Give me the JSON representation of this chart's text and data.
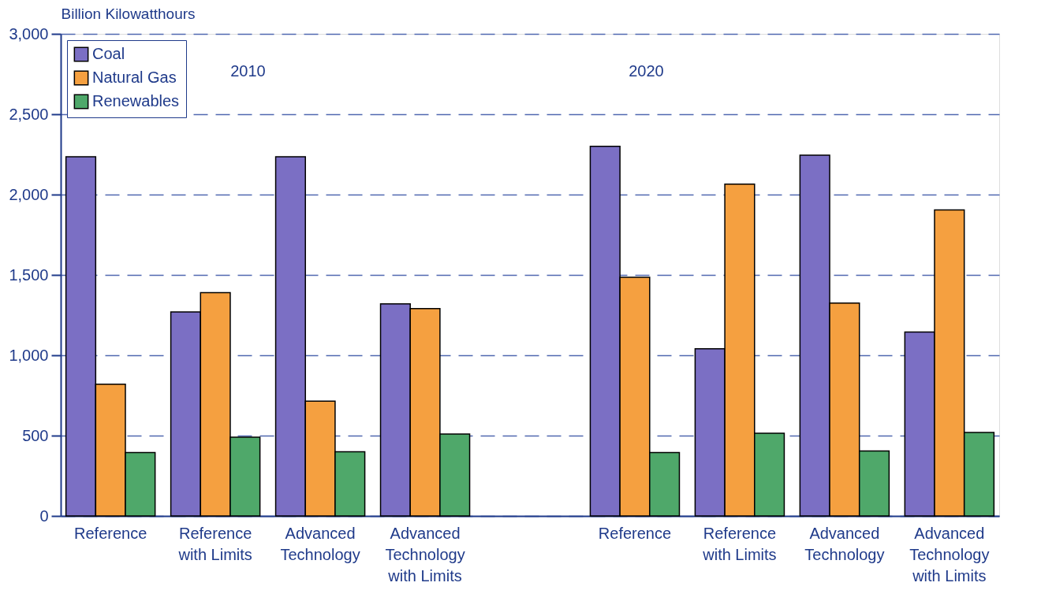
{
  "chart_data": {
    "type": "bar",
    "ylabel": "Billion Kilowatthours",
    "categories": [
      "Reference",
      "Reference\nwith Limits",
      "Advanced\nTechnology",
      "Advanced\nTechnology\nwith Limits",
      null,
      "Reference",
      "Reference\nwith Limits",
      "Advanced\nTechnology",
      "Advanced\nTechnology\nwith Limits"
    ],
    "series": [
      {
        "name": "Coal",
        "color": "#7b6fc4",
        "values": [
          2235,
          1270,
          2235,
          1320,
          null,
          2300,
          1040,
          2245,
          1145
        ]
      },
      {
        "name": "Natural Gas",
        "color": "#f5a040",
        "values": [
          820,
          1390,
          715,
          1290,
          null,
          1485,
          2065,
          1325,
          1905
        ]
      },
      {
        "name": "Renewables",
        "color": "#4fa86a",
        "values": [
          395,
          490,
          400,
          510,
          null,
          395,
          515,
          405,
          520
        ]
      }
    ],
    "ylim": [
      0,
      3000
    ],
    "yticks": [
      0,
      {
        "value": 500,
        "label": "500"
      },
      {
        "value": 1000,
        "label": "1,000"
      },
      {
        "value": 1500,
        "label": "1,500"
      },
      {
        "value": 2000,
        "label": "2,000"
      },
      {
        "value": 2500,
        "label": "2,500"
      },
      {
        "value": 3000,
        "label": "3,000"
      }
    ],
    "grid": "y",
    "legend": "top left",
    "annotations": [
      {
        "text": "2010"
      },
      {
        "text": "2020"
      }
    ]
  }
}
